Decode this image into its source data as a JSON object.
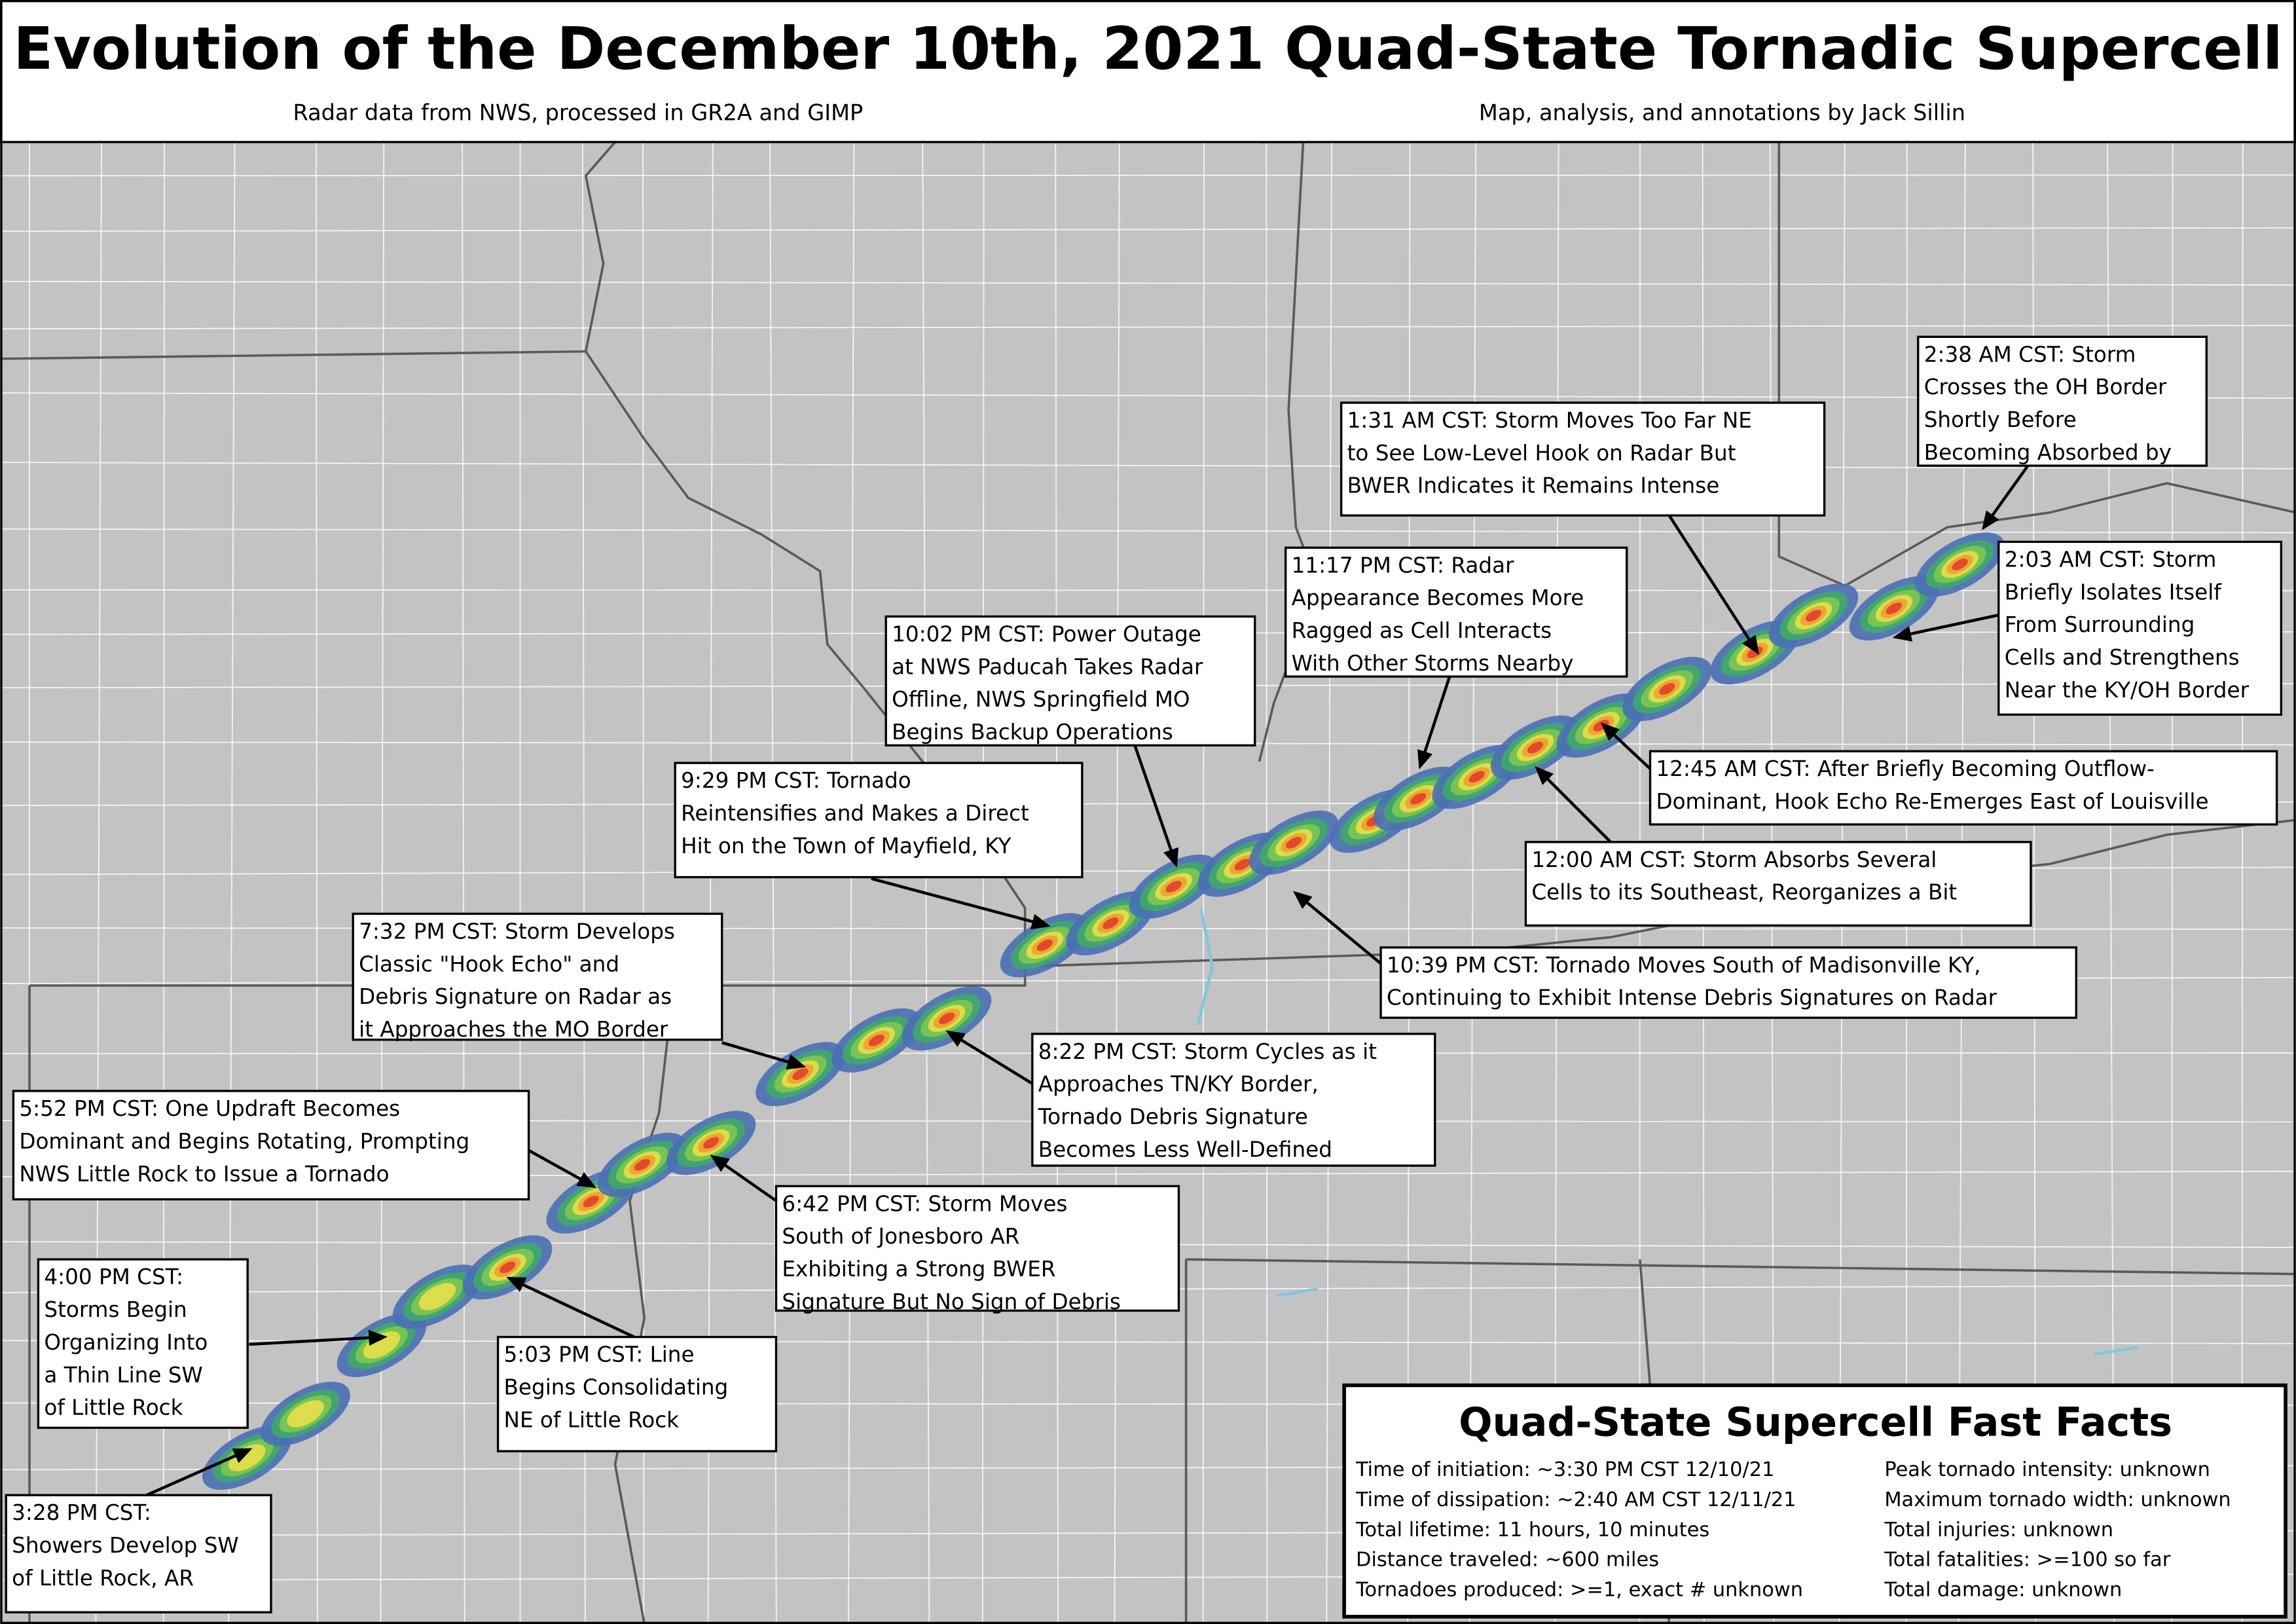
{
  "header": {
    "title": "Evolution of the December 10th, 2021 Quad-State Tornadic Supercell",
    "left_credit": "Radar data from NWS, processed in GR2A and GIMP",
    "right_credit": "Map, analysis, and annotations by Jack Sillin"
  },
  "annotations": [
    {
      "lines": [
        "3:28 PM CST:",
        "Showers Develop SW",
        "of Little Rock, AR"
      ]
    },
    {
      "lines": [
        "4:00 PM CST:",
        "Storms Begin",
        "Organizing Into",
        "a Thin Line SW",
        "of Little Rock"
      ]
    },
    {
      "lines": [
        "5:03 PM CST: Line",
        "Begins Consolidating",
        "NE of Little Rock"
      ]
    },
    {
      "lines": [
        "5:52 PM CST: One Updraft Becomes",
        "Dominant and Begins Rotating, Prompting",
        "NWS Little Rock to Issue a Tornado"
      ]
    },
    {
      "lines": [
        "6:42 PM CST: Storm Moves",
        "South of Jonesboro AR",
        "Exhibiting a Strong BWER",
        "Signature But No Sign of Debris"
      ]
    },
    {
      "lines": [
        "7:32 PM CST: Storm Develops",
        "Classic \"Hook Echo\" and",
        "Debris Signature on Radar as",
        "it Approaches the MO Border"
      ]
    },
    {
      "lines": [
        "8:22 PM CST: Storm Cycles as it",
        "Approaches TN/KY Border,",
        "Tornado Debris Signature",
        "Becomes Less Well-Defined"
      ]
    },
    {
      "lines": [
        "9:29 PM CST: Tornado",
        "Reintensifies and Makes a Direct",
        "Hit on the Town of Mayfield, KY"
      ]
    },
    {
      "lines": [
        "10:02 PM CST: Power Outage",
        "at NWS Paducah Takes Radar",
        "Offline, NWS Springfield MO",
        "Begins Backup Operations"
      ]
    },
    {
      "lines": [
        "10:39 PM CST: Tornado Moves South of Madisonville KY,",
        "Continuing to Exhibit Intense Debris Signatures on Radar"
      ]
    },
    {
      "lines": [
        "11:17 PM CST: Radar",
        "Appearance Becomes More",
        "Ragged as Cell Interacts",
        "With Other Storms Nearby"
      ]
    },
    {
      "lines": [
        "12:00 AM CST: Storm Absorbs Several",
        "Cells to its Southeast, Reorganizes a Bit"
      ]
    },
    {
      "lines": [
        "12:45 AM CST: After Briefly Becoming Outflow-",
        "Dominant, Hook Echo Re-Emerges East of Louisville"
      ]
    },
    {
      "lines": [
        "1:31 AM CST: Storm Moves Too Far NE",
        "to See Low-Level Hook on Radar But",
        "BWER Indicates it Remains Intense"
      ]
    },
    {
      "lines": [
        "2:03 AM CST: Storm",
        "Briefly Isolates Itself",
        "From Surrounding",
        "Cells and Strengthens",
        "Near the KY/OH Border"
      ]
    },
    {
      "lines": [
        "2:38 AM CST: Storm",
        "Crosses the OH Border",
        "Shortly Before",
        "Becoming Absorbed by"
      ]
    }
  ],
  "fast_facts": {
    "title": "Quad-State Supercell Fast Facts",
    "left": [
      "Time of initiation: ~3:30 PM CST 12/10/21",
      "Time of dissipation: ~2:40 AM CST 12/11/21",
      "Total lifetime: 11 hours, 10 minutes",
      "Distance traveled: ~600 miles",
      "Tornadoes produced: >=1, exact # unknown"
    ],
    "right": [
      "Peak tornado intensity: unknown",
      "Maximum tornado width: unknown",
      "Total injuries: unknown",
      "Total fatalities: >=100 so far",
      "Total damage: unknown"
    ]
  }
}
